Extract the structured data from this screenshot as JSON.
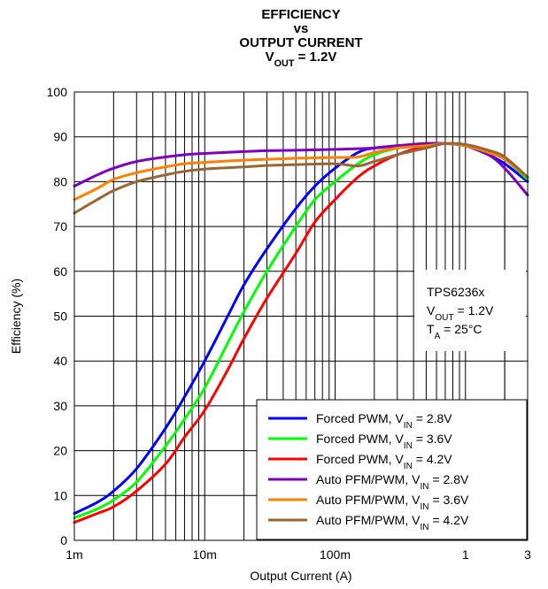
{
  "chart_data": {
    "type": "line",
    "title_lines": [
      {
        "main": "EFFICIENCY"
      },
      {
        "main": "vs"
      },
      {
        "main": "OUTPUT CURRENT"
      },
      {
        "main": "V",
        "sub": "OUT",
        "rest": " = 1.2V"
      }
    ],
    "xlabel": "Output Current (A)",
    "ylabel": "Efficiency (%)",
    "xscale": "log",
    "xlim": [
      0.001,
      3
    ],
    "ylim": [
      0,
      100
    ],
    "grid": true,
    "x_ticks": [
      {
        "value": 0.001,
        "label": "1m"
      },
      {
        "value": 0.01,
        "label": "10m"
      },
      {
        "value": 0.1,
        "label": "100m"
      },
      {
        "value": 1,
        "label": "1"
      },
      {
        "value": 3,
        "label": "3"
      }
    ],
    "y_ticks": [
      0,
      10,
      20,
      30,
      40,
      50,
      60,
      70,
      80,
      90,
      100
    ],
    "annotation": [
      {
        "main": "TPS6236x"
      },
      {
        "main": "V",
        "sub": "OUT",
        "rest": " = 1.2V"
      },
      {
        "main": "T",
        "sub": "A",
        "rest": " = 25°C"
      }
    ],
    "legend_position": "bottom-right",
    "series": [
      {
        "name": "Forced PWM, V",
        "name_sub": "IN",
        "name_rest": " = 2.8V",
        "color": "#0000ff",
        "x": [
          0.001,
          0.0015,
          0.002,
          0.003,
          0.005,
          0.007,
          0.01,
          0.015,
          0.02,
          0.03,
          0.05,
          0.07,
          0.1,
          0.15,
          0.2,
          0.3,
          0.5,
          0.7,
          1,
          1.5,
          2,
          3
        ],
        "y": [
          6,
          8.5,
          11,
          16,
          25,
          32,
          40,
          50,
          57,
          65,
          74,
          79,
          83,
          86.5,
          87.5,
          88,
          88.5,
          88.5,
          88,
          86,
          84,
          80
        ]
      },
      {
        "name": "Forced PWM, V",
        "name_sub": "IN",
        "name_rest": " = 3.6V",
        "color": "#00ff00",
        "x": [
          0.001,
          0.0015,
          0.002,
          0.003,
          0.005,
          0.007,
          0.01,
          0.015,
          0.02,
          0.03,
          0.05,
          0.07,
          0.1,
          0.15,
          0.2,
          0.3,
          0.5,
          0.7,
          1,
          1.5,
          2,
          3
        ],
        "y": [
          5,
          7,
          9,
          13,
          21,
          27,
          34,
          44,
          51,
          60,
          70,
          76,
          80,
          84,
          86,
          87.5,
          88.5,
          88.5,
          88,
          86.5,
          85,
          80.5
        ]
      },
      {
        "name": "Forced PWM, V",
        "name_sub": "IN",
        "name_rest": " = 4.2V",
        "color": "#ff0000",
        "x": [
          0.001,
          0.0015,
          0.002,
          0.003,
          0.005,
          0.007,
          0.01,
          0.015,
          0.02,
          0.03,
          0.05,
          0.07,
          0.1,
          0.15,
          0.2,
          0.3,
          0.5,
          0.7,
          1,
          1.5,
          2,
          3
        ],
        "y": [
          4,
          6,
          7.5,
          11,
          17,
          23,
          29,
          38,
          45,
          54,
          64,
          71,
          76,
          81,
          83.5,
          86,
          88,
          88.5,
          88,
          86.5,
          85,
          81
        ]
      },
      {
        "name": "Auto PFM/PWM, V",
        "name_sub": "IN",
        "name_rest": " = 2.8V",
        "color": "#8000c0",
        "x": [
          0.001,
          0.0015,
          0.002,
          0.003,
          0.005,
          0.007,
          0.01,
          0.02,
          0.03,
          0.05,
          0.1,
          0.2,
          0.3,
          0.5,
          0.7,
          1,
          1.5,
          2,
          3
        ],
        "y": [
          79,
          81.5,
          83,
          84.5,
          85.5,
          86,
          86.3,
          86.7,
          86.9,
          87,
          87.2,
          87.5,
          88,
          88.5,
          88.5,
          88,
          86,
          83,
          77
        ]
      },
      {
        "name": "Auto PFM/PWM, V",
        "name_sub": "IN",
        "name_rest": " = 3.6V",
        "color": "#ff8000",
        "x": [
          0.001,
          0.0015,
          0.002,
          0.003,
          0.005,
          0.007,
          0.01,
          0.02,
          0.03,
          0.05,
          0.1,
          0.15,
          0.2,
          0.3,
          0.5,
          0.7,
          1,
          1.5,
          2,
          3
        ],
        "y": [
          76,
          78.5,
          80.5,
          82,
          83.3,
          84,
          84.3,
          84.8,
          85,
          85.2,
          85.4,
          85.5,
          86.5,
          87.5,
          88,
          88.5,
          88,
          86.5,
          85,
          81
        ]
      },
      {
        "name": "Auto PFM/PWM, V",
        "name_sub": "IN",
        "name_rest": " = 4.2V",
        "color": "#996633",
        "x": [
          0.001,
          0.0015,
          0.002,
          0.003,
          0.005,
          0.007,
          0.01,
          0.02,
          0.03,
          0.05,
          0.1,
          0.15,
          0.2,
          0.3,
          0.5,
          0.7,
          1,
          1.5,
          2,
          3
        ],
        "y": [
          73,
          76,
          78,
          80,
          81.5,
          82.3,
          82.8,
          83.3,
          83.6,
          83.8,
          84,
          83.5,
          84.5,
          86,
          87.5,
          88.5,
          88.3,
          87,
          85.5,
          81
        ]
      }
    ]
  }
}
